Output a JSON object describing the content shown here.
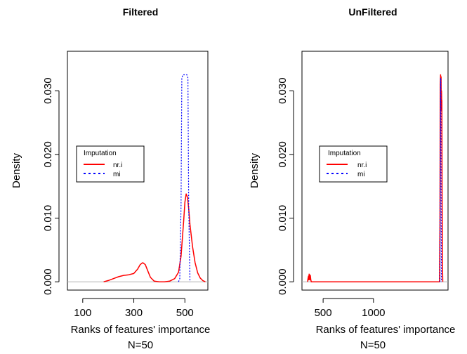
{
  "chart_data": [
    {
      "type": "line",
      "title": "Filtered",
      "xlabel": "Ranks of features' importance",
      "sublabel": "N=50",
      "ylabel": "Density",
      "xlim": [
        40,
        590
      ],
      "ylim": [
        -0.0013,
        0.0362
      ],
      "x_ticks": [
        100,
        300,
        500
      ],
      "y_ticks": [
        "0.000",
        "0.010",
        "0.020",
        "0.030"
      ],
      "y_tick_values": [
        0.0,
        0.01,
        0.02,
        0.03
      ],
      "legend": {
        "title": "Imputation",
        "position": "left-middle",
        "entries": [
          "nr.i",
          "mi"
        ]
      },
      "series": [
        {
          "name": "nr.i",
          "color": "#ff0000",
          "style": "solid",
          "x": [
            182,
            200,
            220,
            240,
            260,
            280,
            300,
            315,
            325,
            335,
            345,
            355,
            365,
            380,
            400,
            420,
            440,
            460,
            475,
            485,
            495,
            500,
            505,
            510,
            515,
            520,
            530,
            540,
            550,
            560,
            570,
            580
          ],
          "y": [
            0,
            0.0002,
            0.0005,
            0.0008,
            0.001,
            0.0011,
            0.0013,
            0.002,
            0.0027,
            0.003,
            0.0027,
            0.0017,
            0.0007,
            0.0001,
            0,
            0,
            0.0001,
            0.0005,
            0.0015,
            0.004,
            0.0095,
            0.0125,
            0.0138,
            0.0133,
            0.0115,
            0.009,
            0.0055,
            0.003,
            0.0014,
            0.0006,
            0.0002,
            0
          ]
        },
        {
          "name": "mi",
          "color": "#0000ff",
          "style": "dotted",
          "x": [
            475,
            480,
            485,
            488,
            492,
            500,
            508,
            512,
            515,
            520
          ],
          "y": [
            0,
            0.0005,
            0.012,
            0.032,
            0.0325,
            0.0325,
            0.0325,
            0.032,
            0.012,
            0
          ]
        }
      ]
    },
    {
      "type": "line",
      "title": "UnFiltered",
      "xlabel": "Ranks of features' importance",
      "sublabel": "N=50",
      "ylabel": "Density",
      "xlim": [
        290,
        1740
      ],
      "ylim": [
        -0.0013,
        0.0362
      ],
      "x_ticks": [
        500,
        1000
      ],
      "y_ticks": [
        "0.000",
        "0.010",
        "0.020",
        "0.030"
      ],
      "y_tick_values": [
        0.0,
        0.01,
        0.02,
        0.03
      ],
      "legend": {
        "title": "Imputation",
        "position": "left-middle",
        "entries": [
          "nr.i",
          "mi"
        ]
      },
      "series": [
        {
          "name": "nr.i",
          "color": "#ff0000",
          "style": "solid",
          "x": [
            345,
            350,
            355,
            358,
            361,
            364,
            367,
            370,
            373,
            377,
            382,
            1655,
            1660,
            1663,
            1666,
            1669,
            1671,
            1673,
            1675,
            1677,
            1679,
            1681,
            1684,
            1688
          ],
          "y": [
            0,
            0.0005,
            0.0009,
            0.0003,
            0.0012,
            0.0004,
            0.0011,
            0.0003,
            0.001,
            0.0004,
            0,
            0,
            0.009,
            0.031,
            0.0325,
            0.029,
            0.0322,
            0.027,
            0.03,
            0.028,
            0.0285,
            0.015,
            0.003,
            0
          ]
        },
        {
          "name": "mi",
          "color": "#0000ff",
          "style": "dotted",
          "x": [
            1660,
            1664,
            1666,
            1668,
            1670,
            1674
          ],
          "y": [
            0,
            0.02,
            0.032,
            0.032,
            0.02,
            0
          ]
        }
      ]
    }
  ]
}
